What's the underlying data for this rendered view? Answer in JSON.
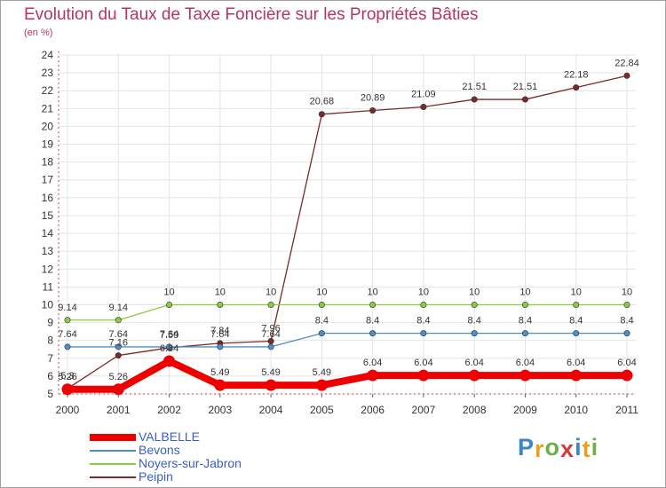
{
  "chart_data": {
    "type": "line",
    "title": "Evolution du Taux de Taxe Foncière sur les Propriétés Bâties",
    "ylabel": "(en %)",
    "xlabel": "",
    "x": [
      "2000",
      "2001",
      "2002",
      "2003",
      "2004",
      "2005",
      "2006",
      "2007",
      "2008",
      "2009",
      "2010",
      "2011"
    ],
    "ylim": [
      5,
      24
    ],
    "yticks": [
      "5",
      "6",
      "7",
      "8",
      "9",
      "10",
      "11",
      "12",
      "13",
      "14",
      "15",
      "16",
      "17",
      "18",
      "19",
      "20",
      "21",
      "22",
      "23",
      "24"
    ],
    "grid": true,
    "series": [
      {
        "name": "VALBELLE",
        "color": "#ee0000",
        "values": [
          5.26,
          5.26,
          6.84,
          5.49,
          5.49,
          5.49,
          6.04,
          6.04,
          6.04,
          6.04,
          6.04,
          6.04
        ],
        "labels": [
          "5.26",
          "5.26",
          "6.84",
          "5.49",
          "5.49",
          "5.49",
          "6.04",
          "6.04",
          "6.04",
          "6.04",
          "6.04",
          "6.04"
        ]
      },
      {
        "name": "Bevons",
        "color": "#4a90c6",
        "values": [
          7.64,
          7.64,
          7.64,
          7.64,
          7.64,
          8.4,
          8.4,
          8.4,
          8.4,
          8.4,
          8.4,
          8.4
        ],
        "labels": [
          "7.64",
          "7.64",
          "7.64",
          "7.64",
          "7.64",
          "8.4",
          "8.4",
          "8.4",
          "8.4",
          "8.4",
          "8.4",
          "8.4"
        ]
      },
      {
        "name": "Noyers-sur-Jabron",
        "color": "#88cc44",
        "values": [
          9.14,
          9.14,
          10,
          10,
          10,
          10,
          10,
          10,
          10,
          10,
          10,
          10
        ],
        "labels": [
          "9.14",
          "9.14",
          "10",
          "10",
          "10",
          "10",
          "10",
          "10",
          "10",
          "10",
          "10",
          "10"
        ]
      },
      {
        "name": "Peipin",
        "color": "#7a2a2a",
        "values": [
          5.3,
          7.16,
          7.59,
          7.84,
          7.96,
          20.68,
          20.89,
          21.09,
          21.51,
          21.51,
          22.18,
          22.84
        ],
        "labels": [
          "5.3",
          "7.16",
          "7.59",
          "7.84",
          "7.96",
          "20.68",
          "20.89",
          "21.09",
          "21.51",
          "21.51",
          "22.18",
          "22.84"
        ]
      }
    ],
    "legend_position": "bottom-left"
  },
  "brand": {
    "letters": [
      "P",
      "r",
      "o",
      "x",
      "i",
      "t",
      "i"
    ],
    "colors": [
      "#3a86c8",
      "#e8a020",
      "#6ab04c",
      "#d83a3a",
      "#3a86c8",
      "#e8a020",
      "#6ab04c"
    ]
  }
}
